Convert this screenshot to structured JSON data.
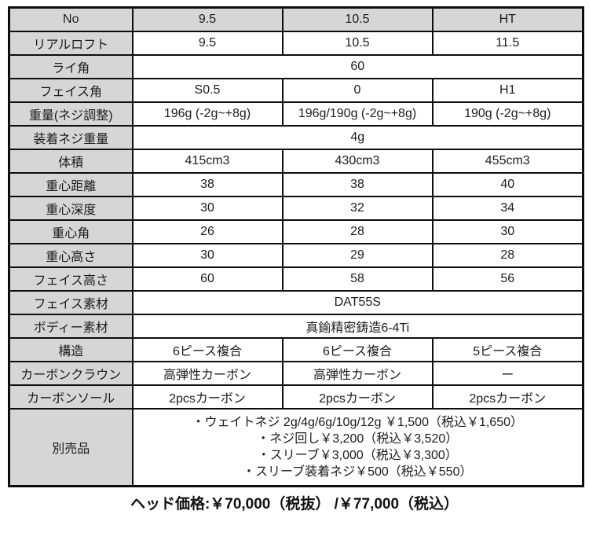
{
  "colors": {
    "header_bg": "#d6d6d6",
    "border": "#0d0d0d",
    "text": "#1c1c1c"
  },
  "spec_table": {
    "header": [
      "No",
      "9.5",
      "10.5",
      "HT"
    ],
    "rows": [
      {
        "label": "リアルロフト",
        "values": [
          "9.5",
          "10.5",
          "11.5"
        ]
      },
      {
        "label": "ライ角",
        "merged_value": "60"
      },
      {
        "label": "フェイス角",
        "values": [
          "S0.5",
          "0",
          "H1"
        ]
      },
      {
        "label": "重量(ネジ調整)",
        "values": [
          "196g (-2g~+8g)",
          "196g/190g (-2g~+8g)",
          "190g (-2g~+8g)"
        ]
      },
      {
        "label": "装着ネジ重量",
        "merged_value": "4g"
      },
      {
        "label": "体積",
        "values": [
          "415cm3",
          "430cm3",
          "455cm3"
        ]
      },
      {
        "label": "重心距離",
        "values": [
          "38",
          "38",
          "40"
        ]
      },
      {
        "label": "重心深度",
        "values": [
          "30",
          "32",
          "34"
        ]
      },
      {
        "label": "重心角",
        "values": [
          "26",
          "28",
          "30"
        ]
      },
      {
        "label": "重心高さ",
        "values": [
          "30",
          "29",
          "28"
        ]
      },
      {
        "label": "フェイス高さ",
        "values": [
          "60",
          "58",
          "56"
        ]
      },
      {
        "label": "フェイス素材",
        "merged_value": "DAT55S"
      },
      {
        "label": "ボディー素材",
        "merged_value": "真鍮精密鋳造6-4Ti"
      },
      {
        "label": "構造",
        "values": [
          "6ピース複合",
          "6ピース複合",
          "5ピース複合"
        ]
      },
      {
        "label": "カーボンクラウン",
        "values": [
          "高弾性カーボン",
          "高弾性カーボン",
          "ー"
        ]
      },
      {
        "label": "カーボンソール",
        "values": [
          "2pcsカーボン",
          "2pcsカーボン",
          "2pcsカーボン"
        ]
      },
      {
        "label": "別売品",
        "lines": [
          "・ウェイトネジ 2g/4g/6g/10g/12g ￥1,500（税込￥1,650）",
          "・ネジ回し￥3,200（税込￥3,520）",
          "・スリーブ￥3,000（税込￥3,300）",
          "・スリーブ装着ネジ￥500（税込￥550）"
        ]
      }
    ]
  },
  "footer": {
    "price": "ヘッド価格:￥70,000（税抜） /￥77,000（税込）"
  }
}
